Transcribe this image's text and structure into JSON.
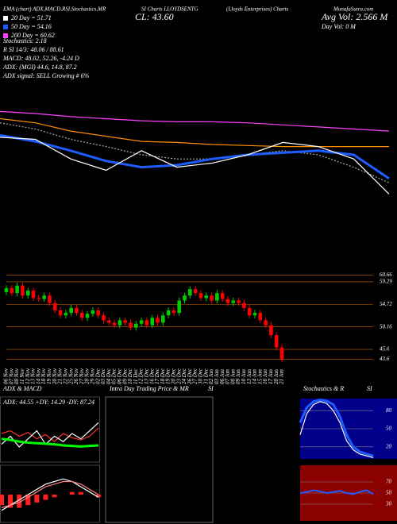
{
  "header": {
    "title": "EMA (chart) ADX,MACD,RSI,Stochastics,MR",
    "symbol": "SI Charts LLOYDSENTG",
    "company": "(Lloyds Enterprises) Charts",
    "site": "MunafaSutra.com",
    "close": "CL: 43.60",
    "avg_vol": "Avg Vol: 2.566 M",
    "day_vol": "Day Vol: 0 M"
  },
  "legend": [
    {
      "label": "20 Day = 51.71",
      "color": "#ffffff"
    },
    {
      "label": "50 Day = 54.16",
      "color": "#1e5cff"
    },
    {
      "label": "200 Day = 60.62",
      "color": "#ff40ff"
    }
  ],
  "indicators": [
    "Stochastics: 2.18",
    "R          SI 14/3: 48.06 / 88.61",
    "MACD: 48.02, 52.26, -4.24  D",
    "ADX:            (MGI) 44.6, 14.8, 87.2",
    "ADX  signal: SELL Growing # 6%"
  ],
  "panels": {
    "adx_macd": "ADX  & MACD",
    "intraday": "Intra  Day Trading Price  & MR",
    "intraday_si": "SI",
    "stoch": "Stochastics & R",
    "stoch_si": "SI"
  },
  "chart_data": [
    {
      "type": "candlestick",
      "categories": [
        "06 Nov",
        "07 Nov",
        "08 Nov",
        "11 Nov",
        "12 Nov",
        "13 Nov",
        "14 Nov",
        "18 Nov",
        "19 Nov",
        "20 Nov",
        "21 Nov",
        "22 Nov",
        "25 Nov",
        "26 Nov",
        "27 Nov",
        "28 Nov",
        "29 Nov",
        "02 Dec",
        "03 Dec",
        "04 Dec",
        "05 Dec",
        "06 Dec",
        "09 Dec",
        "10 Dec",
        "11 Dec",
        "12 Dec",
        "13 Dec",
        "16 Dec",
        "17 Dec",
        "18 Dec",
        "19 Dec",
        "20 Dec",
        "23 Dec",
        "24 Dec",
        "26 Dec",
        "27 Dec",
        "30 Dec",
        "31 Dec",
        "02 Jan",
        "03 Jan",
        "06 Jan",
        "07 Jan",
        "08 Jan",
        "09 Jan",
        "10 Jan",
        "13 Jan",
        "14 Jan",
        "15 Jan",
        "16 Jan",
        "17 Jan",
        "20 Jan",
        "21 Jan"
      ],
      "open": [
        57.2,
        58.0,
        57.0,
        58.5,
        56.5,
        57.5,
        56.0,
        55.8,
        56.5,
        55.0,
        53.5,
        52.5,
        53.0,
        54.0,
        53.0,
        52.0,
        52.8,
        53.5,
        52.5,
        51.5,
        51.0,
        50.5,
        51.5,
        51.0,
        50.0,
        50.8,
        51.5,
        50.5,
        52.0,
        51.0,
        52.5,
        53.5,
        53.0,
        55.5,
        56.5,
        57.8,
        57.0,
        56.0,
        56.5,
        55.5,
        57.0,
        55.8,
        55.0,
        55.5,
        55.0,
        54.0,
        52.5,
        53.0,
        51.5,
        50.5,
        48.5,
        46.0
      ],
      "high": [
        58.6,
        58.6,
        59.1,
        59.1,
        58.1,
        58.1,
        56.6,
        57.1,
        57.1,
        55.6,
        54.1,
        53.6,
        54.6,
        54.6,
        53.6,
        53.4,
        54.1,
        54.1,
        53.1,
        52.1,
        51.6,
        52.1,
        52.1,
        51.6,
        51.4,
        52.1,
        52.1,
        52.6,
        52.6,
        53.1,
        54.1,
        54.1,
        56.1,
        57.1,
        58.4,
        58.4,
        57.6,
        57.1,
        57.1,
        57.6,
        57.6,
        56.4,
        56.1,
        56.1,
        55.6,
        54.6,
        53.6,
        53.6,
        52.1,
        51.1,
        49.1,
        46.6
      ],
      "low": [
        56.6,
        56.4,
        56.4,
        55.9,
        55.9,
        55.4,
        55.2,
        55.2,
        54.4,
        52.9,
        51.9,
        51.9,
        52.4,
        52.4,
        51.4,
        51.4,
        52.2,
        51.9,
        50.9,
        50.4,
        49.9,
        49.9,
        50.4,
        49.4,
        49.4,
        50.2,
        49.9,
        49.9,
        50.4,
        50.4,
        51.9,
        52.4,
        52.4,
        54.9,
        55.9,
        56.4,
        55.4,
        55.4,
        54.9,
        54.9,
        55.2,
        54.4,
        54.4,
        54.4,
        53.4,
        51.9,
        51.9,
        50.9,
        49.9,
        47.9,
        45.4,
        43.0
      ],
      "close": [
        58.0,
        57.0,
        58.5,
        56.5,
        57.5,
        56.0,
        55.8,
        56.5,
        55.0,
        53.5,
        52.5,
        53.0,
        54.0,
        53.0,
        52.0,
        52.8,
        53.5,
        52.5,
        51.5,
        51.0,
        50.5,
        51.5,
        51.0,
        50.0,
        50.8,
        51.5,
        50.5,
        52.0,
        51.0,
        52.5,
        53.5,
        53.0,
        55.5,
        56.5,
        57.8,
        57.0,
        56.0,
        56.5,
        55.5,
        57.0,
        55.8,
        55.0,
        55.5,
        55.0,
        54.0,
        52.5,
        53.0,
        51.5,
        50.5,
        48.5,
        46.0,
        43.6
      ],
      "up_color": "#00cc00",
      "down_color": "#ff0000",
      "grid_color": "#cc6600",
      "ylim": [
        42.4,
        63.3
      ],
      "yticks": [
        60.66,
        59.29,
        54.72,
        50.16,
        45.6,
        43.6
      ]
    },
    {
      "type": "line",
      "ylim": [
        0,
        100
      ],
      "series": [
        {
          "color": "#ff40ff",
          "values": [
            92,
            90,
            87,
            85,
            83,
            82,
            82,
            81,
            79,
            77,
            75,
            73
          ]
        },
        {
          "color": "#ff8c00",
          "values": [
            85,
            81,
            73,
            68,
            63,
            62,
            60,
            59,
            58,
            58,
            58,
            58
          ]
        },
        {
          "color": "#aaaaaa",
          "dashed": true,
          "values": [
            81,
            75,
            65,
            58,
            50,
            46,
            46,
            50,
            54,
            50,
            38,
            23
          ]
        },
        {
          "color": "#1e5cff",
          "width": 3,
          "values": [
            69,
            63,
            54,
            44,
            38,
            40,
            46,
            50,
            52,
            54,
            50,
            27
          ]
        },
        {
          "color": "#ffffff",
          "values": [
            67,
            65,
            46,
            35,
            54,
            38,
            42,
            50,
            62,
            58,
            46,
            12
          ]
        }
      ]
    },
    {
      "type": "line",
      "title": "ADX: 44.55 +DY: 14.29 -DY: 87.24",
      "ylim": [
        0,
        100
      ],
      "series": [
        {
          "color": "#ff3030",
          "values": [
            50,
            55,
            45,
            52,
            40,
            48,
            35,
            50,
            42,
            38,
            45,
            60
          ]
        },
        {
          "color": "#ffffff",
          "values": [
            30,
            45,
            25,
            40,
            55,
            30,
            45,
            35,
            50,
            40,
            55,
            70
          ]
        },
        {
          "color": "#00ff00",
          "width": 3,
          "values": [
            40,
            38,
            35,
            33,
            32,
            31,
            30,
            28,
            27,
            26,
            27,
            28
          ]
        }
      ]
    },
    {
      "type": "macd",
      "ylim": [
        -10,
        10
      ],
      "histogram": [
        -4,
        -5,
        -5,
        -4,
        -3,
        -2,
        -1,
        0,
        1,
        1,
        0,
        -1
      ],
      "bar_color": "#ff2020",
      "series": [
        {
          "color": "#ffffff",
          "values": [
            -6,
            -4,
            -2,
            0,
            2,
            4,
            5,
            6,
            5,
            3,
            1,
            -1
          ]
        },
        {
          "color": "#ff8080",
          "values": [
            -5,
            -4,
            -3,
            -1,
            1,
            3,
            4,
            5,
            5,
            4,
            2,
            0
          ]
        }
      ]
    },
    {
      "type": "line",
      "background": "#00008b",
      "ylim": [
        0,
        100
      ],
      "yticks": [
        80,
        50,
        20
      ],
      "series": [
        {
          "color": "#1e5cff",
          "width": 3,
          "values": [
            60,
            85,
            95,
            98,
            96,
            90,
            70,
            40,
            20,
            12,
            8,
            5
          ]
        },
        {
          "color": "#ffffff",
          "values": [
            40,
            75,
            90,
            95,
            92,
            80,
            60,
            30,
            15,
            8,
            5,
            2
          ]
        }
      ]
    },
    {
      "type": "line",
      "background": "#8b0000",
      "ylim": [
        0,
        100
      ],
      "yticks": [
        70,
        50,
        30
      ],
      "series": [
        {
          "color": "#1e5cff",
          "width": 2,
          "values": [
            50,
            52,
            55,
            53,
            50,
            52,
            54,
            50,
            48,
            52,
            55,
            48
          ]
        }
      ]
    }
  ]
}
